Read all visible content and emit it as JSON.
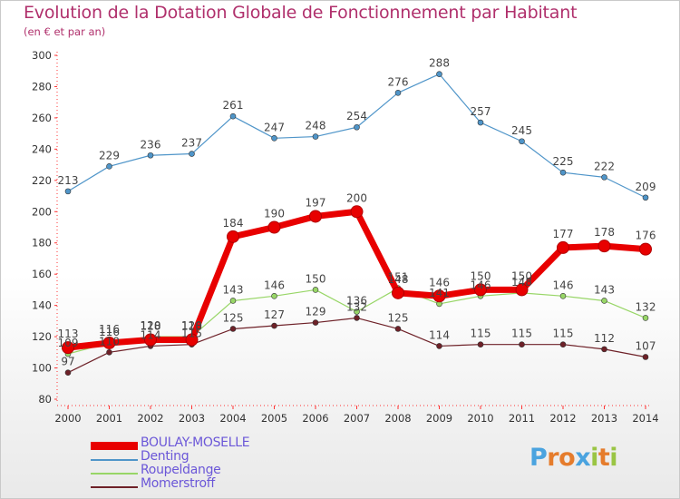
{
  "title": "Evolution de la Dotation Globale de Fonctionnement par Habitant",
  "subtitle": "(en € et par an)",
  "logo": {
    "text": "Proxiti",
    "letters": [
      {
        "ch": "P",
        "color": "#4aa3df"
      },
      {
        "ch": "r",
        "color": "#e57c2c"
      },
      {
        "ch": "o",
        "color": "#e57c2c"
      },
      {
        "ch": "x",
        "color": "#4aa3df"
      },
      {
        "ch": "i",
        "color": "#9ac544"
      },
      {
        "ch": "t",
        "color": "#e57c2c"
      },
      {
        "ch": "i",
        "color": "#9ac544"
      }
    ]
  },
  "chart_data": {
    "type": "line",
    "title": "Evolution de la Dotation Globale de Fonctionnement par Habitant",
    "subtitle": "(en € et par an)",
    "xlabel": "",
    "ylabel": "",
    "ylim": [
      80,
      300
    ],
    "yticks": [
      80,
      100,
      120,
      140,
      160,
      180,
      200,
      220,
      240,
      260,
      280,
      300
    ],
    "categories": [
      "2000",
      "2001",
      "2002",
      "2003",
      "2004",
      "2005",
      "2006",
      "2007",
      "2008",
      "2009",
      "2010",
      "2011",
      "2012",
      "2013",
      "2014"
    ],
    "grid": false,
    "legend_position": "bottom-left",
    "series": [
      {
        "name": "BOULAY-MOSELLE",
        "color": "#e80000",
        "values": [
          113,
          116,
          118,
          118,
          184,
          190,
          197,
          200,
          148,
          146,
          150,
          150,
          177,
          178,
          176
        ]
      },
      {
        "name": "Denting",
        "color": "#4f95c9",
        "values": [
          213,
          229,
          236,
          237,
          261,
          247,
          248,
          254,
          276,
          288,
          257,
          245,
          225,
          222,
          209
        ]
      },
      {
        "name": "Roupeldange",
        "color": "#98d667",
        "values": [
          109,
          116,
          120,
          120,
          143,
          146,
          150,
          136,
          151,
          141,
          146,
          148,
          146,
          143,
          132
        ]
      },
      {
        "name": "Momerstroff",
        "color": "#6e2128",
        "values": [
          97,
          110,
          114,
          115,
          125,
          127,
          129,
          132,
          125,
          114,
          115,
          115,
          115,
          112,
          107
        ]
      }
    ],
    "data_labels": [
      [
        "113",
        "116",
        "118",
        "118",
        "184",
        "190",
        "197",
        "200",
        "148",
        "146",
        "150",
        "150",
        "177",
        "178",
        "176"
      ],
      [
        "213",
        "229",
        "236",
        "237",
        "261",
        "247",
        "248",
        "254",
        "276",
        "288",
        "257",
        "245",
        "225",
        "222",
        "209"
      ],
      [
        "109",
        "116",
        "120",
        "120",
        "143",
        "146",
        "150",
        "136",
        "151",
        "141",
        "146",
        "148",
        "146",
        "143",
        "132"
      ],
      [
        "97",
        "110",
        "114",
        "115",
        "125",
        "127",
        "129",
        "132",
        "125",
        "114",
        "115",
        "115",
        "115",
        "112",
        "107"
      ]
    ]
  }
}
